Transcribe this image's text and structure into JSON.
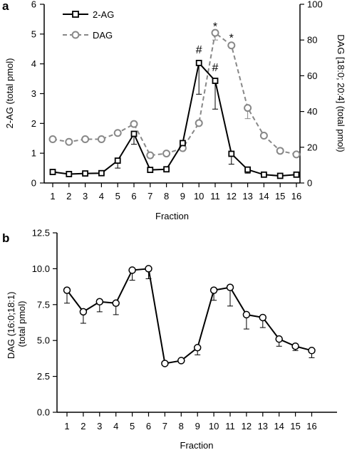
{
  "chart_data": [
    {
      "panel": "a",
      "type": "line",
      "xlabel": "Fraction",
      "ylabel": "2-AG (total pmol)",
      "ylabel_right": "DAG [18:0; 20:4] (total pmol)",
      "x": [
        1,
        2,
        3,
        4,
        5,
        6,
        7,
        8,
        9,
        10,
        11,
        12,
        13,
        14,
        15,
        16
      ],
      "ylim": [
        0,
        6
      ],
      "ylim_right": [
        0,
        100
      ],
      "yticks": [
        0,
        1,
        2,
        3,
        4,
        5,
        6
      ],
      "yticks_right": [
        0,
        20,
        40,
        60,
        80,
        100
      ],
      "grid": false,
      "legend_position": "top-left",
      "series": [
        {
          "name": "2-AG",
          "axis": "left",
          "color": "#000000",
          "marker": "square",
          "line": "solid",
          "values": [
            0.37,
            0.3,
            0.32,
            0.33,
            0.75,
            1.65,
            0.44,
            0.46,
            1.34,
            4.03,
            3.43,
            0.98,
            0.45,
            0.28,
            0.24,
            0.28
          ],
          "errors": [
            0.0,
            0.0,
            0.0,
            0.0,
            0.25,
            0.35,
            0.0,
            0.0,
            0.0,
            1.05,
            0.95,
            0.35,
            0.12,
            0.0,
            0.0,
            0.0
          ]
        },
        {
          "name": "DAG",
          "axis": "right",
          "color": "#888888",
          "marker": "circle",
          "line": "dashed",
          "values": [
            24.5,
            23.0,
            24.5,
            24.5,
            28.0,
            33.0,
            15.5,
            16.5,
            19.5,
            33.5,
            84.0,
            77.0,
            42.0,
            26.5,
            18.0,
            16.0
          ],
          "errors": [
            0,
            0,
            0,
            0,
            0,
            0,
            0,
            0,
            0,
            0,
            4,
            0,
            6,
            0,
            0,
            0
          ]
        }
      ],
      "annotations": [
        {
          "x": 10,
          "y": 4.35,
          "axis": "left",
          "text": "#"
        },
        {
          "x": 11,
          "y": 3.75,
          "axis": "left",
          "text": "#"
        },
        {
          "x": 11,
          "y": 89.5,
          "axis": "right",
          "text": "*"
        },
        {
          "x": 12,
          "y": 83.0,
          "axis": "right",
          "text": "*"
        }
      ]
    },
    {
      "panel": "b",
      "type": "line",
      "xlabel": "Fraction",
      "ylabel": "DAG (16:0;18:1)\n(total pmol)",
      "x": [
        1,
        2,
        3,
        4,
        5,
        6,
        7,
        8,
        9,
        10,
        11,
        12,
        13,
        14,
        15,
        16
      ],
      "ylim": [
        0,
        12.5
      ],
      "yticks": [
        "0.0",
        "2.5",
        "5.0",
        "7.5",
        "10.0",
        "12.5"
      ],
      "grid": false,
      "series": [
        {
          "color": "#000000",
          "marker": "circle",
          "line": "solid",
          "values": [
            8.5,
            7.0,
            7.7,
            7.6,
            9.9,
            10.0,
            3.4,
            3.6,
            4.5,
            8.5,
            8.7,
            6.8,
            6.6,
            5.1,
            4.6,
            4.3
          ],
          "errors": [
            0.9,
            0.8,
            0.7,
            0.8,
            0.7,
            0.7,
            0.0,
            0.0,
            0.5,
            0.7,
            1.3,
            1.0,
            0.7,
            0.5,
            0.3,
            0.5
          ]
        }
      ]
    }
  ]
}
